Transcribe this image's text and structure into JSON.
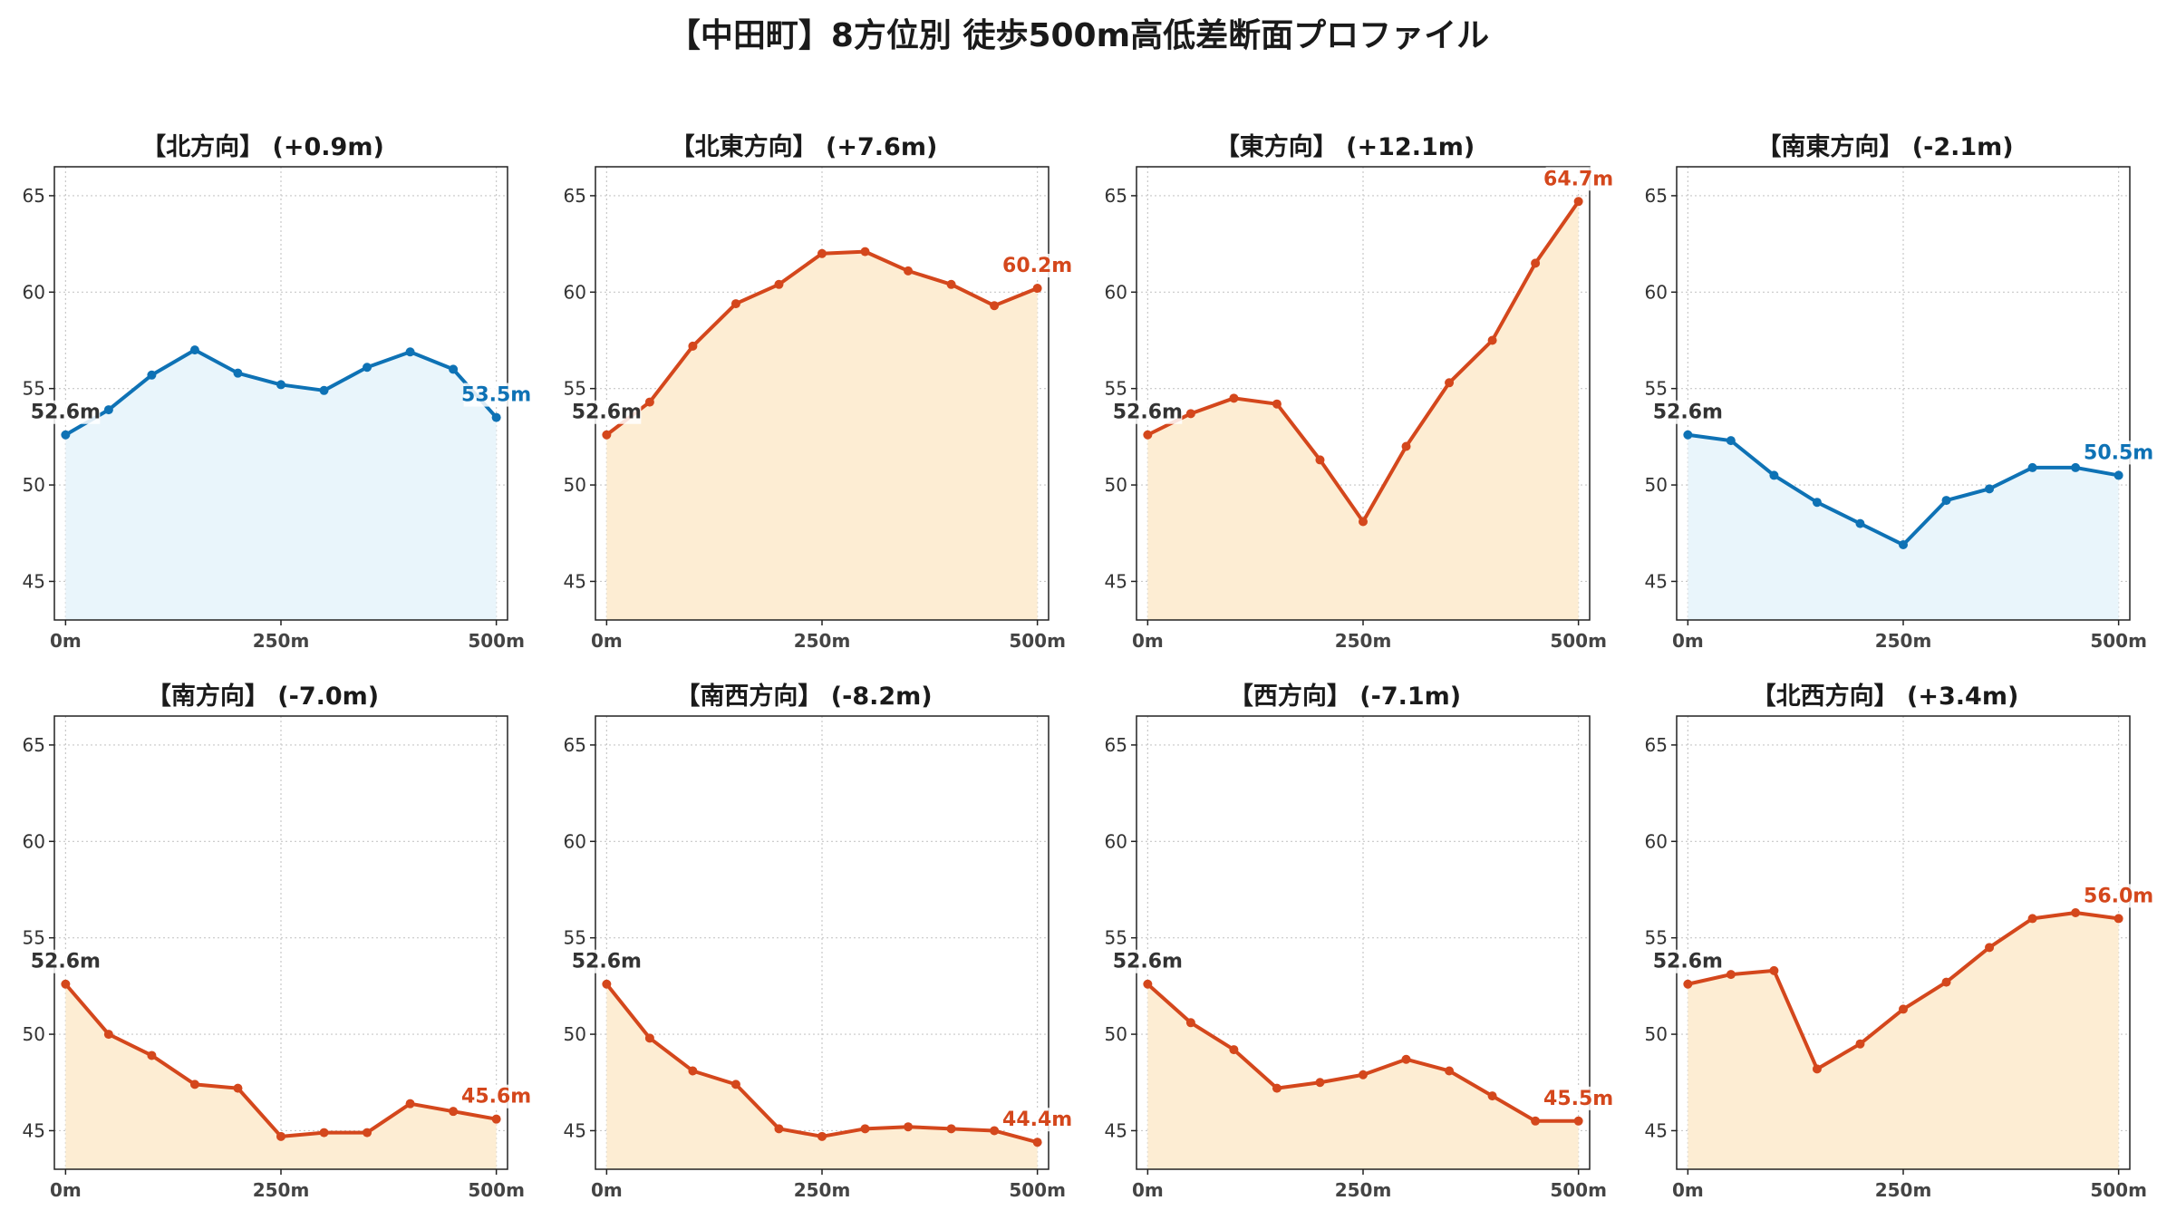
{
  "title": "【中田町】8方位別 徒歩500m高低差断面プロファイル",
  "colors": {
    "up_line": "#d4471c",
    "up_fill": "#fdedd3",
    "down_line": "#0e72b5",
    "down_fill": "#e9f5fb",
    "start_label": "#333333",
    "grid": "#c8c8c8"
  },
  "chart_data": [
    {
      "type": "area",
      "title": "【北方向】 (+0.9m)",
      "trend": "down",
      "x": [
        0,
        50,
        100,
        150,
        200,
        250,
        300,
        350,
        400,
        450,
        500
      ],
      "values": [
        52.6,
        53.9,
        55.7,
        57.0,
        55.8,
        55.2,
        54.9,
        56.1,
        56.9,
        56.0,
        53.5
      ],
      "start_label": "52.6m",
      "end_label": "53.5m",
      "xticks": [
        "0m",
        "250m",
        "500m"
      ],
      "yticks": [
        45,
        50,
        55,
        60,
        65
      ],
      "ylim": [
        43,
        66.5
      ],
      "grid": true
    },
    {
      "type": "area",
      "title": "【北東方向】 (+7.6m)",
      "trend": "up",
      "x": [
        0,
        50,
        100,
        150,
        200,
        250,
        300,
        350,
        400,
        450,
        500
      ],
      "values": [
        52.6,
        54.3,
        57.2,
        59.4,
        60.4,
        62.0,
        62.1,
        61.1,
        60.4,
        59.3,
        60.2
      ],
      "start_label": "52.6m",
      "end_label": "60.2m",
      "xticks": [
        "0m",
        "250m",
        "500m"
      ],
      "yticks": [
        45,
        50,
        55,
        60,
        65
      ],
      "ylim": [
        43,
        66.5
      ],
      "grid": true
    },
    {
      "type": "area",
      "title": "【東方向】 (+12.1m)",
      "trend": "up",
      "x": [
        0,
        50,
        100,
        150,
        200,
        250,
        300,
        350,
        400,
        450,
        500
      ],
      "values": [
        52.6,
        53.7,
        54.5,
        54.2,
        51.3,
        48.1,
        52.0,
        55.3,
        57.5,
        61.5,
        64.7
      ],
      "start_label": "52.6m",
      "end_label": "64.7m",
      "xticks": [
        "0m",
        "250m",
        "500m"
      ],
      "yticks": [
        45,
        50,
        55,
        60,
        65
      ],
      "ylim": [
        43,
        66.5
      ],
      "grid": true
    },
    {
      "type": "area",
      "title": "【南東方向】 (-2.1m)",
      "trend": "down",
      "x": [
        0,
        50,
        100,
        150,
        200,
        250,
        300,
        350,
        400,
        450,
        500
      ],
      "values": [
        52.6,
        52.3,
        50.5,
        49.1,
        48.0,
        46.9,
        49.2,
        49.8,
        50.9,
        50.9,
        50.5
      ],
      "start_label": "52.6m",
      "end_label": "50.5m",
      "xticks": [
        "0m",
        "250m",
        "500m"
      ],
      "yticks": [
        45,
        50,
        55,
        60,
        65
      ],
      "ylim": [
        43,
        66.5
      ],
      "grid": true
    },
    {
      "type": "area",
      "title": "【南方向】 (-7.0m)",
      "trend": "up",
      "x": [
        0,
        50,
        100,
        150,
        200,
        250,
        300,
        350,
        400,
        450,
        500
      ],
      "values": [
        52.6,
        50.0,
        48.9,
        47.4,
        47.2,
        44.7,
        44.9,
        44.9,
        46.4,
        46.0,
        45.6
      ],
      "start_label": "52.6m",
      "end_label": "45.6m",
      "xticks": [
        "0m",
        "250m",
        "500m"
      ],
      "yticks": [
        45,
        50,
        55,
        60,
        65
      ],
      "ylim": [
        43,
        66.5
      ],
      "grid": true
    },
    {
      "type": "area",
      "title": "【南西方向】 (-8.2m)",
      "trend": "up",
      "x": [
        0,
        50,
        100,
        150,
        200,
        250,
        300,
        350,
        400,
        450,
        500
      ],
      "values": [
        52.6,
        49.8,
        48.1,
        47.4,
        45.1,
        44.7,
        45.1,
        45.2,
        45.1,
        45.0,
        44.4
      ],
      "start_label": "52.6m",
      "end_label": "44.4m",
      "xticks": [
        "0m",
        "250m",
        "500m"
      ],
      "yticks": [
        45,
        50,
        55,
        60,
        65
      ],
      "ylim": [
        43,
        66.5
      ],
      "grid": true
    },
    {
      "type": "area",
      "title": "【西方向】 (-7.1m)",
      "trend": "up",
      "x": [
        0,
        50,
        100,
        150,
        200,
        250,
        300,
        350,
        400,
        450,
        500
      ],
      "values": [
        52.6,
        50.6,
        49.2,
        47.2,
        47.5,
        47.9,
        48.7,
        48.1,
        46.8,
        45.5,
        45.5
      ],
      "start_label": "52.6m",
      "end_label": "45.5m",
      "xticks": [
        "0m",
        "250m",
        "500m"
      ],
      "yticks": [
        45,
        50,
        55,
        60,
        65
      ],
      "ylim": [
        43,
        66.5
      ],
      "grid": true
    },
    {
      "type": "area",
      "title": "【北西方向】 (+3.4m)",
      "trend": "up",
      "x": [
        0,
        50,
        100,
        150,
        200,
        250,
        300,
        350,
        400,
        450,
        500
      ],
      "values": [
        52.6,
        53.1,
        53.3,
        48.2,
        49.5,
        51.3,
        52.7,
        54.5,
        56.0,
        56.3,
        56.0
      ],
      "start_label": "52.6m",
      "end_label": "56.0m",
      "xticks": [
        "0m",
        "250m",
        "500m"
      ],
      "yticks": [
        45,
        50,
        55,
        60,
        65
      ],
      "ylim": [
        43,
        66.5
      ],
      "grid": true
    }
  ]
}
